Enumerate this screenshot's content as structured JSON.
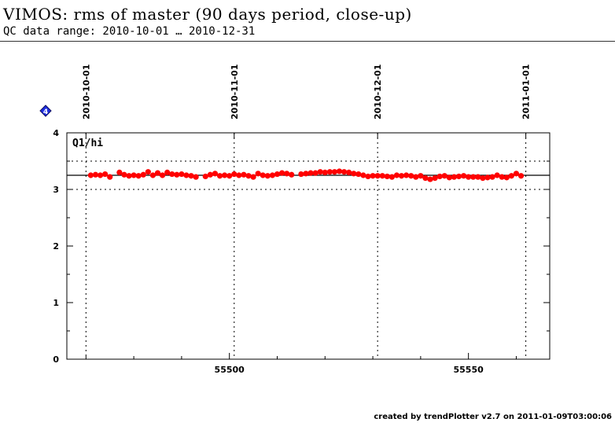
{
  "header": {
    "title": "VIMOS: rms of master (90 days period, close-up)",
    "subtitle": "QC data range: 2010-10-01 … 2010-12-31"
  },
  "footer": {
    "credit": "created by trendPlotter v2.7 on 2011-01-09T03:00:06"
  },
  "chart_data": {
    "type": "scatter",
    "title": "",
    "xlabel": "",
    "ylabel": "",
    "panel_label": "Q1/hi",
    "marker_badge": "4",
    "xlim": [
      55466,
      55567
    ],
    "ylim": [
      0,
      4
    ],
    "x_ticks": [
      55500,
      55550
    ],
    "y_ticks": [
      0,
      1,
      2,
      3,
      4
    ],
    "date_ticks": [
      {
        "label": "2010-10-01",
        "mjd": 55470
      },
      {
        "label": "2010-11-01",
        "mjd": 55501
      },
      {
        "label": "2010-12-01",
        "mjd": 55531
      },
      {
        "label": "2011-01-01",
        "mjd": 55562
      }
    ],
    "reference_lines": {
      "mean": 3.25,
      "upper": 3.5,
      "lower": 3.0
    },
    "grid": false,
    "marker_color": "#ff0000",
    "series": [
      {
        "x": [
          55471,
          55472,
          55473,
          55474,
          55475,
          55477,
          55478,
          55479,
          55480,
          55481,
          55482,
          55483,
          55484,
          55485,
          55486,
          55487,
          55488,
          55489,
          55490,
          55491,
          55492,
          55493,
          55495,
          55496,
          55497,
          55498,
          55499,
          55500,
          55501,
          55502,
          55503,
          55504,
          55505,
          55506,
          55507,
          55508,
          55509,
          55510,
          55511,
          55512,
          55513,
          55515,
          55516,
          55517,
          55518,
          55519,
          55520,
          55521,
          55522,
          55523,
          55524,
          55525,
          55526,
          55527,
          55528,
          55529,
          55530,
          55531,
          55532,
          55533,
          55534,
          55535,
          55536,
          55537,
          55538,
          55539,
          55540,
          55541,
          55542,
          55543,
          55544,
          55545,
          55546,
          55547,
          55548,
          55549,
          55550,
          55551,
          55552,
          55553,
          55554,
          55555,
          55556,
          55557,
          55558,
          55559,
          55560,
          55561
        ],
        "y": [
          3.25,
          3.26,
          3.25,
          3.27,
          3.22,
          3.3,
          3.26,
          3.24,
          3.25,
          3.24,
          3.26,
          3.31,
          3.25,
          3.29,
          3.25,
          3.3,
          3.27,
          3.26,
          3.27,
          3.25,
          3.24,
          3.22,
          3.23,
          3.26,
          3.28,
          3.24,
          3.25,
          3.24,
          3.27,
          3.25,
          3.26,
          3.24,
          3.22,
          3.28,
          3.25,
          3.24,
          3.25,
          3.27,
          3.29,
          3.28,
          3.26,
          3.27,
          3.28,
          3.29,
          3.29,
          3.31,
          3.3,
          3.31,
          3.31,
          3.32,
          3.31,
          3.3,
          3.28,
          3.27,
          3.25,
          3.23,
          3.24,
          3.24,
          3.24,
          3.23,
          3.22,
          3.25,
          3.24,
          3.25,
          3.24,
          3.22,
          3.24,
          3.2,
          3.18,
          3.2,
          3.23,
          3.24,
          3.21,
          3.22,
          3.23,
          3.24,
          3.22,
          3.22,
          3.22,
          3.2,
          3.21,
          3.22,
          3.25,
          3.22,
          3.21,
          3.24,
          3.28,
          3.24
        ]
      }
    ]
  }
}
